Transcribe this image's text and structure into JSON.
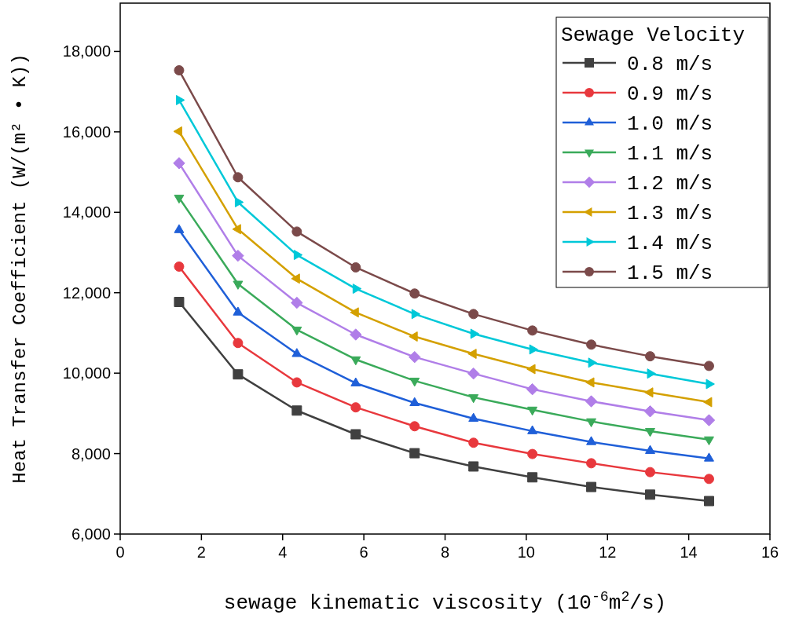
{
  "chart_data": {
    "type": "line",
    "xlabel": "sewage kinematic viscosity (10$^{-6}$m$^{2}$/s)",
    "ylabel": "Heat Transfer Coefficient (W/(m² • K))",
    "legend_title": "Sewage Velocity",
    "legend": "top right",
    "grid": false,
    "line_style": "solid",
    "x": [
      1.45,
      2.9,
      4.35,
      5.8,
      7.25,
      8.7,
      10.15,
      11.6,
      13.05,
      14.5
    ],
    "xlim": [
      0,
      16
    ],
    "xticks": [
      0,
      2,
      4,
      6,
      8,
      10,
      12,
      14,
      16
    ],
    "ylim": [
      6000,
      19200
    ],
    "yticks": [
      {
        "value": 6000,
        "label": "6,000"
      },
      {
        "value": 8000,
        "label": "8,000"
      },
      {
        "value": 10000,
        "label": "10,000"
      },
      {
        "value": 12000,
        "label": "12,000"
      },
      {
        "value": 14000,
        "label": "14,000"
      },
      {
        "value": 16000,
        "label": "16,000"
      },
      {
        "value": 18000,
        "label": "18,000"
      }
    ],
    "series": [
      {
        "name": "0.8 m/s",
        "color": "#404040",
        "marker": "square",
        "values": [
          11770,
          9970,
          9070,
          8480,
          8010,
          7680,
          7410,
          7170,
          6980,
          6820
        ]
      },
      {
        "name": "0.9 m/s",
        "color": "#e8383d",
        "marker": "circle",
        "values": [
          12650,
          10750,
          9770,
          9150,
          8680,
          8270,
          7990,
          7760,
          7540,
          7370
        ]
      },
      {
        "name": "1.0 m/s",
        "color": "#1f5fd8",
        "marker": "triangle",
        "values": [
          13560,
          11510,
          10480,
          9750,
          9260,
          8870,
          8560,
          8290,
          8070,
          7880
        ]
      },
      {
        "name": "1.1 m/s",
        "color": "#3aaa5a",
        "marker": "triangle-down",
        "values": [
          14360,
          12220,
          11080,
          10340,
          9810,
          9400,
          9090,
          8800,
          8560,
          8350
        ]
      },
      {
        "name": "1.2 m/s",
        "color": "#b07ee8",
        "marker": "diamond",
        "values": [
          15220,
          12920,
          11750,
          10960,
          10400,
          9990,
          9600,
          9300,
          9050,
          8830
        ]
      },
      {
        "name": "1.3 m/s",
        "color": "#d4a000",
        "marker": "triangle-left",
        "values": [
          16010,
          13580,
          12350,
          11510,
          10910,
          10480,
          10100,
          9770,
          9520,
          9280
        ]
      },
      {
        "name": "1.4 m/s",
        "color": "#00c8d8",
        "marker": "triangle-right",
        "values": [
          16790,
          14250,
          12940,
          12100,
          11470,
          10980,
          10590,
          10260,
          9990,
          9730
        ]
      },
      {
        "name": "1.5 m/s",
        "color": "#7b4a4a",
        "marker": "circle",
        "values": [
          17530,
          14870,
          13520,
          12630,
          11980,
          11470,
          11060,
          10710,
          10420,
          10180
        ]
      }
    ]
  }
}
